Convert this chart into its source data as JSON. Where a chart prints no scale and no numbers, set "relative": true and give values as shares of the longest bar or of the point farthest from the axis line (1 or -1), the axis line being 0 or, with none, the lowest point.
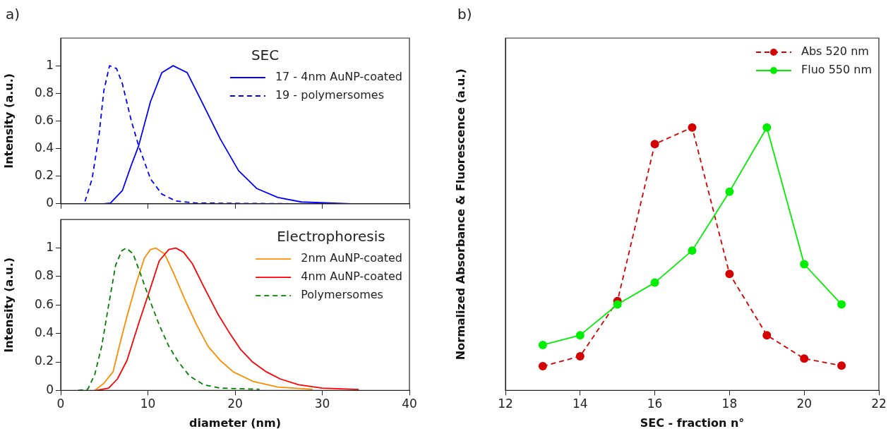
{
  "chart_data": [
    {
      "type": "line",
      "legend_title": "SEC",
      "ylabel": "Intensity (a.u.)",
      "annotations": [
        "a)"
      ],
      "xlim": [
        0,
        40
      ],
      "xticks": [
        0,
        10,
        20,
        30,
        40
      ],
      "ylim": [
        0,
        1.2
      ],
      "yticks": [
        0,
        0.2,
        0.4,
        0.6,
        0.8,
        1
      ],
      "tick_labels": "y",
      "legend": "top right",
      "grid": false,
      "series": [
        {
          "name": "17 - 4nm AuNP-coated",
          "color": "#0000ff",
          "line_style": "solid",
          "x": [
            4.9,
            5.7,
            7.07,
            8.1,
            8.94,
            10.3,
            11.6,
            12.9,
            14.5,
            16.1,
            18.3,
            20.4,
            22.5,
            24.9,
            27.6,
            33.3
          ],
          "values": [
            0,
            0.005,
            0.095,
            0.28,
            0.42,
            0.74,
            0.95,
            1,
            0.95,
            0.75,
            0.47,
            0.24,
            0.11,
            0.046,
            0.013,
            0
          ]
        },
        {
          "name": "19 - polymersomes",
          "color": "#0000ff",
          "line_style": "dashed",
          "x": [
            2,
            2.7,
            3.6,
            4.4,
            4.95,
            5.6,
            6.4,
            7.07,
            8.1,
            8.94,
            10.3,
            11.6,
            13.2,
            15.6,
            26.2
          ],
          "values": [
            0,
            0,
            0.18,
            0.5,
            0.82,
            1,
            0.98,
            0.87,
            0.6,
            0.42,
            0.18,
            0.07,
            0.02,
            0.005,
            0
          ]
        }
      ]
    },
    {
      "type": "line",
      "legend_title": "Electrophoresis",
      "xlabel": "diameter (nm)",
      "ylabel": "Intensity (a.u.)",
      "xlim": [
        0,
        40
      ],
      "xticks": [
        0,
        10,
        20,
        30,
        40
      ],
      "ylim": [
        0,
        1.2
      ],
      "yticks": [
        0,
        0.2,
        0.4,
        0.6,
        0.8,
        1
      ],
      "legend": "top right",
      "grid": false,
      "series": [
        {
          "name": "2nm AuNP-coated",
          "color": "#ff8c00",
          "line_style": "solid",
          "x": [
            3.9,
            4.95,
            6,
            6.8,
            7.6,
            8.7,
            9.6,
            10.3,
            10.9,
            11.9,
            12.9,
            14.3,
            15.6,
            16.9,
            18.3,
            19.8,
            22,
            24.9,
            28.9
          ],
          "values": [
            0,
            0.05,
            0.13,
            0.33,
            0.52,
            0.76,
            0.93,
            0.99,
            1,
            0.96,
            0.83,
            0.63,
            0.46,
            0.31,
            0.21,
            0.13,
            0.065,
            0.024,
            0.008
          ]
        },
        {
          "name": "4nm AuNP-coated",
          "color": "#ff0000",
          "line_style": "solid",
          "x": [
            4.1,
            5.5,
            6.5,
            7.6,
            8.94,
            10.3,
            11.3,
            12.4,
            13.2,
            14.1,
            15.1,
            16.4,
            18,
            19.3,
            20.6,
            22,
            23.6,
            25.2,
            27.3,
            30,
            34.2
          ],
          "values": [
            0,
            0.016,
            0.08,
            0.21,
            0.47,
            0.72,
            0.91,
            0.99,
            1,
            0.97,
            0.89,
            0.73,
            0.54,
            0.41,
            0.29,
            0.2,
            0.13,
            0.08,
            0.04,
            0.016,
            0.006
          ]
        },
        {
          "name": "Polymersomes",
          "color": "#008000",
          "line_style": "dashed",
          "x": [
            2,
            3.1,
            3.9,
            4.7,
            5.5,
            6.3,
            7,
            7.5,
            8.3,
            9.2,
            10.3,
            11.3,
            12.4,
            13.5,
            14.8,
            16.4,
            18.3,
            22.8
          ],
          "values": [
            0,
            0.008,
            0.11,
            0.31,
            0.6,
            0.88,
            0.98,
            1,
            0.96,
            0.81,
            0.62,
            0.46,
            0.31,
            0.2,
            0.1,
            0.04,
            0.016,
            0.008
          ]
        }
      ]
    },
    {
      "type": "line",
      "relative": true,
      "xlabel": "SEC - fraction n°",
      "ylabel": "Normalized Absorbance & Fluorescence (a.u.)",
      "annotations": [
        "b)"
      ],
      "xlim": [
        12,
        22
      ],
      "xticks": [
        12,
        14,
        16,
        18,
        20,
        22
      ],
      "legend": "top right",
      "grid": false,
      "marker": "circle",
      "series": [
        {
          "name": "Abs 520 nm",
          "color": "#d40000",
          "line_style": "dashed",
          "x": [
            13,
            14,
            15,
            16,
            17,
            18,
            19,
            20,
            21
          ],
          "values": [
            0.092,
            0.13,
            0.34,
            0.937,
            1,
            0.443,
            0.21,
            0.121,
            0.094
          ]
        },
        {
          "name": "Fluo 550 nm",
          "color": "#00ee00",
          "line_style": "solid",
          "x": [
            13,
            14,
            15,
            16,
            17,
            18,
            19,
            20,
            21
          ],
          "values": [
            0.173,
            0.21,
            0.327,
            0.41,
            0.532,
            0.756,
            1,
            0.48,
            0.327
          ]
        }
      ]
    }
  ]
}
